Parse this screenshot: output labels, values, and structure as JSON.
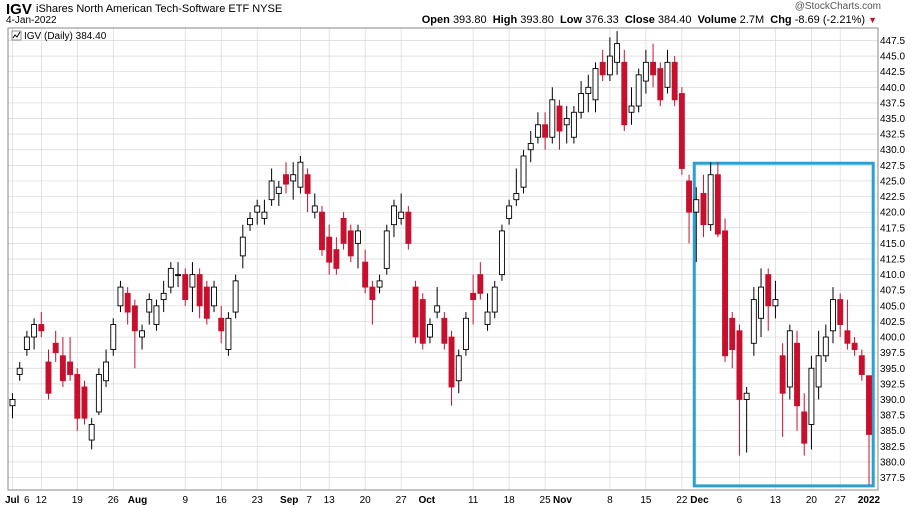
{
  "header": {
    "symbol": "IGV",
    "name": "iShares North American Tech-Software ETF",
    "exchange": "NYSE",
    "date": "4-Jan-2022",
    "watermark": "@StockCharts.com",
    "open_label": "Open",
    "open": "393.80",
    "high_label": "High",
    "high": "393.80",
    "low_label": "Low",
    "low": "376.33",
    "close_label": "Close",
    "close": "384.40",
    "volume_label": "Volume",
    "volume": "2.7M",
    "chg_label": "Chg",
    "chg": "-8.69 (-2.21%)",
    "plot_label": "IGV (Daily) 384.40"
  },
  "colors": {
    "up": "#000000",
    "down": "#c8102e",
    "box": "#2aa1d0",
    "grid": "#d8d8d8"
  },
  "chart_data": {
    "type": "candlestick",
    "ylim": [
      375.5,
      449.5
    ],
    "yticks": [
      "377.5",
      "380.0",
      "382.5",
      "385.0",
      "387.5",
      "390.0",
      "392.5",
      "395.0",
      "397.5",
      "400.0",
      "402.5",
      "405.0",
      "407.5",
      "410.0",
      "412.5",
      "415.0",
      "417.5",
      "420.0",
      "422.5",
      "425.0",
      "427.5",
      "430.0",
      "432.5",
      "435.0",
      "437.5",
      "440.0",
      "442.5",
      "445.0",
      "447.5"
    ],
    "xticks": [
      {
        "label": "Jul",
        "idx": 0,
        "bold": true
      },
      {
        "label": "6",
        "idx": 0
      },
      {
        "label": "12",
        "idx": 4
      },
      {
        "label": "19",
        "idx": 9
      },
      {
        "label": "26",
        "idx": 14
      },
      {
        "label": "Aug",
        "idx": 19,
        "bold": true
      },
      {
        "label": "9",
        "idx": 24
      },
      {
        "label": "16",
        "idx": 29
      },
      {
        "label": "23",
        "idx": 34
      },
      {
        "label": "Sep",
        "idx": 40,
        "bold": true
      },
      {
        "label": "7",
        "idx": 40
      },
      {
        "label": "13",
        "idx": 44
      },
      {
        "label": "20",
        "idx": 49
      },
      {
        "label": "27",
        "idx": 54
      },
      {
        "label": "Oct",
        "idx": 59,
        "bold": true
      },
      {
        "label": "11",
        "idx": 64
      },
      {
        "label": "18",
        "idx": 69
      },
      {
        "label": "25",
        "idx": 74
      },
      {
        "label": "Nov",
        "idx": 78,
        "bold": true
      },
      {
        "label": "8",
        "idx": 83
      },
      {
        "label": "15",
        "idx": 88
      },
      {
        "label": "22",
        "idx": 93
      },
      {
        "label": "Dec",
        "idx": 97,
        "bold": true
      },
      {
        "label": "6",
        "idx": 101
      },
      {
        "label": "13",
        "idx": 106
      },
      {
        "label": "20",
        "idx": 111
      },
      {
        "label": "27",
        "idx": 115
      },
      {
        "label": "2022",
        "idx": 119,
        "bold": true
      }
    ],
    "highlight": {
      "from_idx": 95,
      "to_idx": 120,
      "top": 428.0,
      "bottom": 376.0
    },
    "candles": [
      [
        389.0,
        391.0,
        387.0,
        390.0
      ],
      [
        394.0,
        396.0,
        393.0,
        395.0
      ],
      [
        398.0,
        401.0,
        397.0,
        400.0
      ],
      [
        400.0,
        403.0,
        398.0,
        402.0
      ],
      [
        402.0,
        404.0,
        400.0,
        401.0
      ],
      [
        396.0,
        398.0,
        390.0,
        391.0
      ],
      [
        399.0,
        401.0,
        396.0,
        397.5
      ],
      [
        397.0,
        400.0,
        392.0,
        393.0
      ],
      [
        396.0,
        400.0,
        393.0,
        394.0
      ],
      [
        394.0,
        395.0,
        385.0,
        387.0
      ],
      [
        392.0,
        393.0,
        386.0,
        387.0
      ],
      [
        383.5,
        387.0,
        382.0,
        386.0
      ],
      [
        388.0,
        395.0,
        387.5,
        394.0
      ],
      [
        393.0,
        398.0,
        392.0,
        396.0
      ],
      [
        398.0,
        403.0,
        397.0,
        402.0
      ],
      [
        405.0,
        409.0,
        404.0,
        408.0
      ],
      [
        407.0,
        408.0,
        402.0,
        404.0
      ],
      [
        405.0,
        406.0,
        395.0,
        401.0
      ],
      [
        400.0,
        402.0,
        398.0,
        401.0
      ],
      [
        404.0,
        407.0,
        402.0,
        406.0
      ],
      [
        402.0,
        406.0,
        401.0,
        405.0
      ],
      [
        406.0,
        409.0,
        404.0,
        407.0
      ],
      [
        408.0,
        412.0,
        407.0,
        411.0
      ],
      [
        410.0,
        412.0,
        408.0,
        410.0
      ],
      [
        410.0,
        411.0,
        405.0,
        406.0
      ],
      [
        408.0,
        412.0,
        404.0,
        410.0
      ],
      [
        410.0,
        411.0,
        403.0,
        405.0
      ],
      [
        408.0,
        409.0,
        402.0,
        403.0
      ],
      [
        405.0,
        409.0,
        404.0,
        408.0
      ],
      [
        403.0,
        405.0,
        399.0,
        401.0
      ],
      [
        398.0,
        404.0,
        397.0,
        403.0
      ],
      [
        404.0,
        410.0,
        403.0,
        409.0
      ],
      [
        413.0,
        418.0,
        411.0,
        416.0
      ],
      [
        418.0,
        420.0,
        417.0,
        419.0
      ],
      [
        420.0,
        422.0,
        418.0,
        421.0
      ],
      [
        419.0,
        422.0,
        418.0,
        420.0
      ],
      [
        422.0,
        427.0,
        421.0,
        425.0
      ],
      [
        423.0,
        425.0,
        421.0,
        424.0
      ],
      [
        426.0,
        428.0,
        423.0,
        424.5
      ],
      [
        425.0,
        428.0,
        422.0,
        426.0
      ],
      [
        424.0,
        429.0,
        423.0,
        428.0
      ],
      [
        426.0,
        427.0,
        420.0,
        423.0
      ],
      [
        420.0,
        423.0,
        419.0,
        421.0
      ],
      [
        420.0,
        421.0,
        413.0,
        414.0
      ],
      [
        416.0,
        418.0,
        410.0,
        412.0
      ],
      [
        414.0,
        416.0,
        410.0,
        411.0
      ],
      [
        419.0,
        420.0,
        414.0,
        415.0
      ],
      [
        417.0,
        418.0,
        412.0,
        413.0
      ],
      [
        415.0,
        418.0,
        411.0,
        417.0
      ],
      [
        412.0,
        414.0,
        407.0,
        408.0
      ],
      [
        408.0,
        409.0,
        402.0,
        406.0
      ],
      [
        408.0,
        410.0,
        407.0,
        409.0
      ],
      [
        411.0,
        418.0,
        410.0,
        417.0
      ],
      [
        418.0,
        422.0,
        416.0,
        421.0
      ],
      [
        419.0,
        423.0,
        418.0,
        420.0
      ],
      [
        420.0,
        421.0,
        414.0,
        415.0
      ],
      [
        408.0,
        409.0,
        399.0,
        400.0
      ],
      [
        406.0,
        407.0,
        398.0,
        399.0
      ],
      [
        400.0,
        403.0,
        399.0,
        402.0
      ],
      [
        404.0,
        408.0,
        403.0,
        405.0
      ],
      [
        403.0,
        404.0,
        398.0,
        399.0
      ],
      [
        400.0,
        401.0,
        389.0,
        392.0
      ],
      [
        393.0,
        398.0,
        391.0,
        397.0
      ],
      [
        398.0,
        404.0,
        397.0,
        403.0
      ],
      [
        407.0,
        410.0,
        402.0,
        406.0
      ],
      [
        410.0,
        412.0,
        406.0,
        407.0
      ],
      [
        402.0,
        407.0,
        401.0,
        404.0
      ],
      [
        404.0,
        409.0,
        403.0,
        408.0
      ],
      [
        410.0,
        418.0,
        409.0,
        417.0
      ],
      [
        419.0,
        422.0,
        418.0,
        421.0
      ],
      [
        422.0,
        427.0,
        421.0,
        423.0
      ],
      [
        424.0,
        430.0,
        423.0,
        429.0
      ],
      [
        430.0,
        433.0,
        428.0,
        431.0
      ],
      [
        432.0,
        436.0,
        431.0,
        434.0
      ],
      [
        434.0,
        436.0,
        430.0,
        432.0
      ],
      [
        432.0,
        440.0,
        431.0,
        438.0
      ],
      [
        437.0,
        438.0,
        430.0,
        433.0
      ],
      [
        434.0,
        437.0,
        431.0,
        435.0
      ],
      [
        432.0,
        437.0,
        431.0,
        436.0
      ],
      [
        436.0,
        441.0,
        435.0,
        439.0
      ],
      [
        439.0,
        442.0,
        436.0,
        440.0
      ],
      [
        438.0,
        444.0,
        436.0,
        443.0
      ],
      [
        444.0,
        446.0,
        441.0,
        442.0
      ],
      [
        442.0,
        448.0,
        441.0,
        445.0
      ],
      [
        444.0,
        449.0,
        442.0,
        447.0
      ],
      [
        444.0,
        446.0,
        433.0,
        434.0
      ],
      [
        436.0,
        440.0,
        434.0,
        437.0
      ],
      [
        437.0,
        443.0,
        436.0,
        442.0
      ],
      [
        441.0,
        446.0,
        439.0,
        444.0
      ],
      [
        444.0,
        447.0,
        440.0,
        442.0
      ],
      [
        443.0,
        444.0,
        437.0,
        438.0
      ],
      [
        440.0,
        446.0,
        439.0,
        444.0
      ],
      [
        444.0,
        445.0,
        437.0,
        438.0
      ],
      [
        439.0,
        440.0,
        426.0,
        427.0
      ],
      [
        425.0,
        426.0,
        415.0,
        420.0
      ],
      [
        420.0,
        424.0,
        412.0,
        422.0
      ],
      [
        423.0,
        426.0,
        416.0,
        418.0
      ],
      [
        418.0,
        428.0,
        417.0,
        426.0
      ],
      [
        426.0,
        428.0,
        416.0,
        416.5
      ],
      [
        417.0,
        419.0,
        396.0,
        397.0
      ],
      [
        403.0,
        404.0,
        395.0,
        398.0
      ],
      [
        401.0,
        402.0,
        381.0,
        390.0
      ],
      [
        390.0,
        392.0,
        381.5,
        391.0
      ],
      [
        399.0,
        408.0,
        397.0,
        406.0
      ],
      [
        403.0,
        411.0,
        400.0,
        408.0
      ],
      [
        410.0,
        411.0,
        401.0,
        405.0
      ],
      [
        405.0,
        409.0,
        403.0,
        406.0
      ],
      [
        397.0,
        399.0,
        384.0,
        391.0
      ],
      [
        392.0,
        402.0,
        390.0,
        401.0
      ],
      [
        399.0,
        401.0,
        385.0,
        389.0
      ],
      [
        388.0,
        391.0,
        381.0,
        383.0
      ],
      [
        386.0,
        397.0,
        382.0,
        395.0
      ],
      [
        392.0,
        401.0,
        390.0,
        397.0
      ],
      [
        397.0,
        402.0,
        396.0,
        400.0
      ],
      [
        401.0,
        408.0,
        399.0,
        406.0
      ],
      [
        406.0,
        407.0,
        400.0,
        402.0
      ],
      [
        401.0,
        406.0,
        398.0,
        399.0
      ],
      [
        399.0,
        400.0,
        397.0,
        398.0
      ],
      [
        397.0,
        398.0,
        393.0,
        394.0
      ],
      [
        393.8,
        393.8,
        376.33,
        384.4
      ]
    ]
  }
}
